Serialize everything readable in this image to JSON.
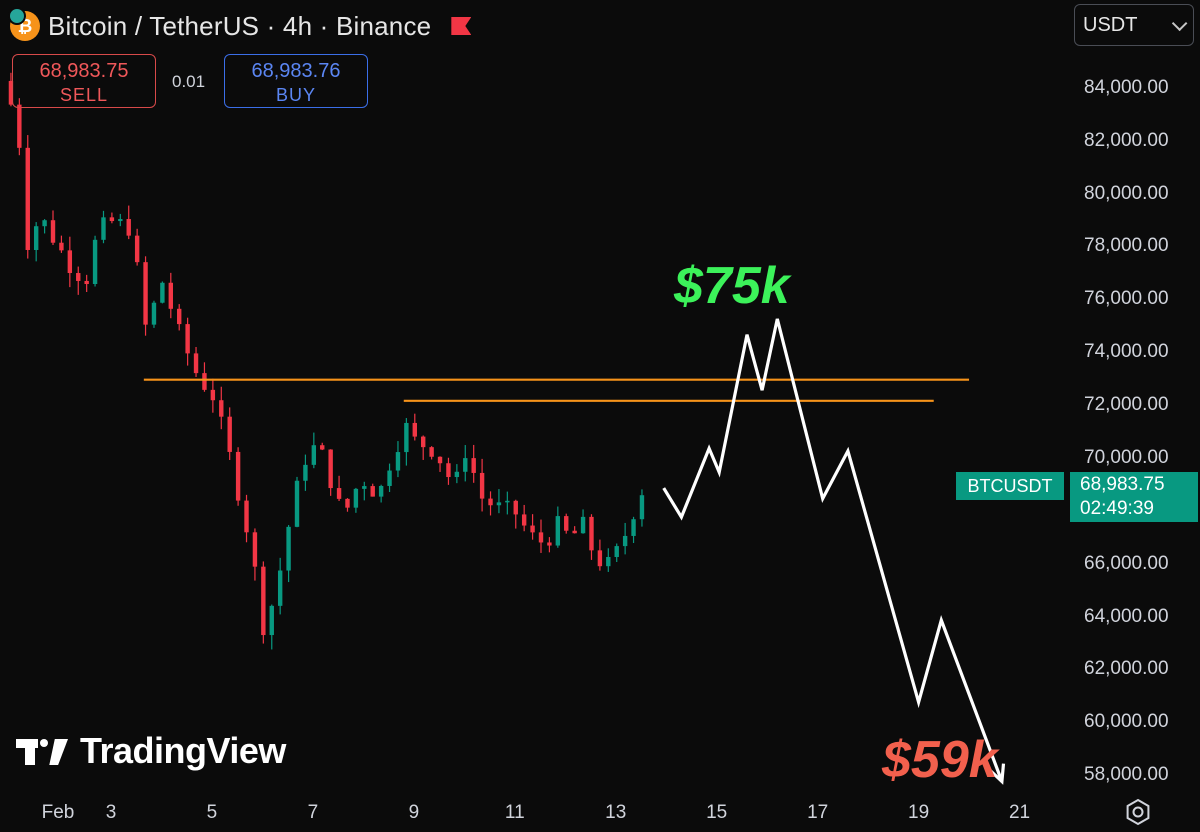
{
  "header": {
    "title": "Bitcoin / TetherUS · 4h · Binance",
    "coin_icon": "bitcoin-icon",
    "flag_icon": "flag-icon"
  },
  "trade": {
    "sell_price": "68,983.75",
    "sell_label": "SELL",
    "spread": "0.01",
    "buy_price": "68,983.76",
    "buy_label": "BUY"
  },
  "currency": {
    "selected": "USDT"
  },
  "price_badge": {
    "symbol": "BTCUSDT",
    "price": "68,983.75",
    "countdown": "02:49:39"
  },
  "annotations": {
    "target_high": "$75k",
    "target_low": "$59k"
  },
  "branding": {
    "logo_text": "TradingView"
  },
  "colors": {
    "up": "#089981",
    "down": "#f23645",
    "level": "#f7931a",
    "projection": "#ffffff"
  },
  "chart_data": {
    "type": "candlestick",
    "y_ticks": [
      "84,000.00",
      "82,000.00",
      "80,000.00",
      "78,000.00",
      "76,000.00",
      "74,000.00",
      "72,000.00",
      "70,000.00",
      "66,000.00",
      "64,000.00",
      "62,000.00",
      "60,000.00",
      "58,000.00"
    ],
    "x_ticks": [
      {
        "label": "Feb",
        "day": 1
      },
      {
        "label": "3",
        "day": 3
      },
      {
        "label": "5",
        "day": 5
      },
      {
        "label": "7",
        "day": 7
      },
      {
        "label": "9",
        "day": 9
      },
      {
        "label": "11",
        "day": 11
      },
      {
        "label": "13",
        "day": 13
      },
      {
        "label": "15",
        "day": 15
      },
      {
        "label": "17",
        "day": 17
      },
      {
        "label": "19",
        "day": 19
      },
      {
        "label": "21",
        "day": 21
      }
    ],
    "price_range": [
      57100,
      86000
    ],
    "day_range": [
      0.8,
      22.0
    ],
    "anchors": [
      [
        0.85,
        84300
      ],
      [
        1.15,
        82700
      ],
      [
        1.35,
        78200
      ],
      [
        1.6,
        79200
      ],
      [
        1.9,
        78200
      ],
      [
        2.2,
        77300
      ],
      [
        2.5,
        76700
      ],
      [
        2.75,
        78700
      ],
      [
        3.05,
        79000
      ],
      [
        3.4,
        78700
      ],
      [
        3.7,
        74800
      ],
      [
        4.0,
        76800
      ],
      [
        4.4,
        74500
      ],
      [
        4.75,
        73000
      ],
      [
        5.0,
        72500
      ],
      [
        5.3,
        70500
      ],
      [
        5.55,
        68500
      ],
      [
        5.8,
        66500
      ],
      [
        6.0,
        63600
      ],
      [
        6.25,
        64800
      ],
      [
        6.5,
        67300
      ],
      [
        6.8,
        69900
      ],
      [
        7.1,
        70600
      ],
      [
        7.35,
        69200
      ],
      [
        7.6,
        67800
      ],
      [
        7.95,
        69300
      ],
      [
        8.3,
        68600
      ],
      [
        8.6,
        70300
      ],
      [
        8.85,
        71200
      ],
      [
        9.05,
        70600
      ],
      [
        9.3,
        70500
      ],
      [
        9.55,
        69900
      ],
      [
        9.8,
        68900
      ],
      [
        10.05,
        70500
      ],
      [
        10.3,
        68600
      ],
      [
        10.6,
        68200
      ],
      [
        11.0,
        68000
      ],
      [
        11.3,
        67100
      ],
      [
        11.6,
        66800
      ],
      [
        11.85,
        67500
      ],
      [
        12.1,
        67000
      ],
      [
        12.35,
        67500
      ],
      [
        12.6,
        66200
      ],
      [
        12.85,
        66000
      ],
      [
        13.1,
        66700
      ],
      [
        13.35,
        68000
      ],
      [
        13.55,
        68950
      ]
    ],
    "levels": [
      {
        "price": 73000,
        "from_day": 3.65,
        "to_day": 20.0
      },
      {
        "price": 72200,
        "from_day": 8.8,
        "to_day": 19.3
      }
    ],
    "projection": [
      [
        13.95,
        68900
      ],
      [
        14.3,
        67800
      ],
      [
        14.85,
        70400
      ],
      [
        15.05,
        69500
      ],
      [
        15.6,
        74700
      ],
      [
        15.9,
        72600
      ],
      [
        16.2,
        75300
      ],
      [
        17.1,
        68500
      ],
      [
        17.6,
        70300
      ],
      [
        19.0,
        60800
      ],
      [
        19.45,
        63900
      ],
      [
        20.65,
        57800
      ]
    ]
  }
}
